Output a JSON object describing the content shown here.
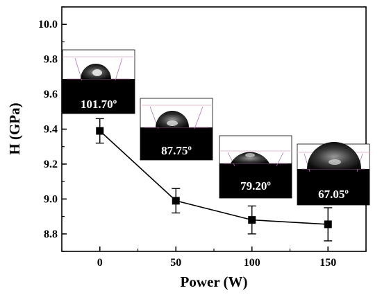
{
  "chart_data": {
    "type": "line",
    "xlabel": "Power (W)",
    "ylabel": "H (GPa)",
    "xlim": [
      -25,
      175
    ],
    "ylim": [
      8.7,
      10.1
    ],
    "x_ticks": [
      "0",
      "50",
      "100",
      "150"
    ],
    "y_ticks": [
      "8.8",
      "9.0",
      "9.2",
      "9.4",
      "9.6",
      "9.8",
      "10.0"
    ],
    "grid": false,
    "series": [
      {
        "x": [
          0,
          50,
          100,
          150
        ],
        "y": [
          9.39,
          8.99,
          8.88,
          8.855
        ],
        "err": [
          0.07,
          0.07,
          0.08,
          0.095
        ],
        "marker": "square",
        "color": "#000000"
      }
    ],
    "annotations": [
      "101.70º",
      "87.75º",
      "79.20º",
      "67.05º"
    ]
  }
}
